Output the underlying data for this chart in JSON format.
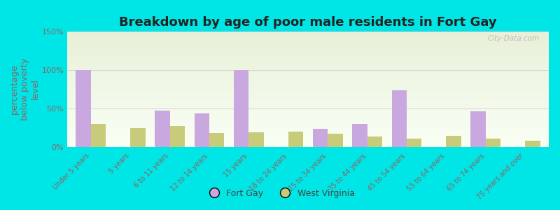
{
  "title": "Breakdown by age of poor male residents in Fort Gay",
  "ylabel": "percentage\nbelow poverty\nlevel",
  "categories": [
    "Under 5 years",
    "5 years",
    "6 to 11 years",
    "12 to 14 years",
    "15 years",
    "18 to 24 years",
    "25 to 34 years",
    "35 to 44 years",
    "45 to 54 years",
    "55 to 64 years",
    "65 to 74 years",
    "75 years and over"
  ],
  "fort_gay": [
    100,
    0,
    47,
    44,
    100,
    0,
    24,
    30,
    74,
    0,
    46,
    0
  ],
  "west_virginia": [
    30,
    25,
    27,
    18,
    19,
    20,
    17,
    14,
    11,
    15,
    11,
    8
  ],
  "fort_gay_color": "#c9a8e0",
  "west_virginia_color": "#c8cc7a",
  "background_color": "#00e5e5",
  "plot_bg_top": "#e8f0d8",
  "plot_bg_bottom": "#fafff5",
  "ylim": [
    0,
    150
  ],
  "yticks": [
    0,
    50,
    100,
    150
  ],
  "ytick_labels": [
    "0%",
    "50%",
    "100%",
    "150%"
  ],
  "bar_width": 0.38,
  "title_fontsize": 13,
  "axis_label_fontsize": 9,
  "tick_fontsize": 8,
  "xtick_fontsize": 7,
  "legend_fort_gay": "Fort Gay",
  "legend_west_virginia": "West Virginia",
  "watermark": "City-Data.com",
  "ylabel_color": "#886666",
  "ytick_color": "#886666",
  "xtick_color": "#886666",
  "title_color": "#222222",
  "grid_color": "#cccccc"
}
